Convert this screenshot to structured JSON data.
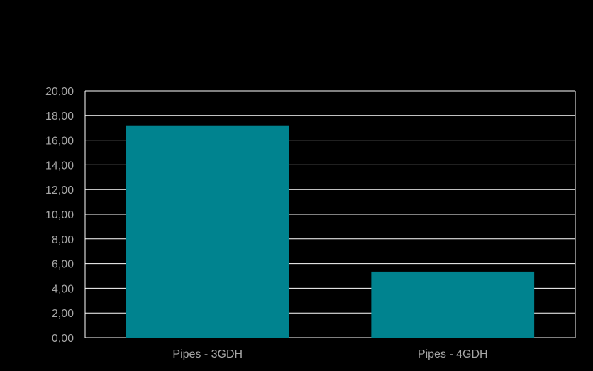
{
  "chart_data": {
    "type": "bar",
    "categories": [
      "Pipes - 3GDH",
      "Pipes - 4GDH"
    ],
    "values": [
      17.2,
      5.35
    ],
    "ylim": [
      0,
      20
    ],
    "y_ticks": [
      "0,00",
      "2,00",
      "4,00",
      "6,00",
      "8,00",
      "10,00",
      "12,00",
      "14,00",
      "16,00",
      "18,00",
      "20,00"
    ],
    "grid": true,
    "legend": "none",
    "colors": {
      "bar": "#00838f",
      "background": "#000000",
      "grid": "#ffffff",
      "text": "#a6a6a6"
    }
  }
}
